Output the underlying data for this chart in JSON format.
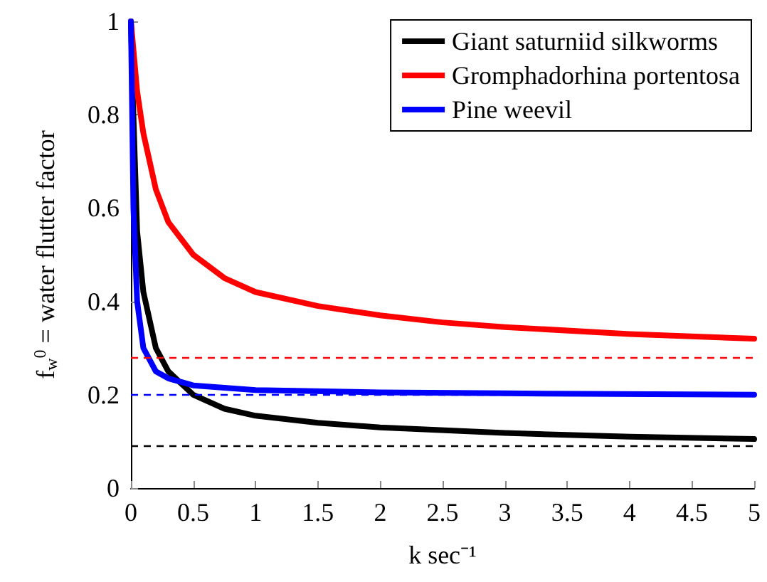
{
  "chart_data": {
    "type": "line",
    "xlabel": "k sec⁻¹",
    "ylabel": "f$_{w}$$^{0}$ = water flutter factor",
    "xlim": [
      0,
      5
    ],
    "ylim": [
      0,
      1
    ],
    "xticks": [
      0,
      0.5,
      1,
      1.5,
      2,
      2.5,
      3,
      3.5,
      4,
      4.5,
      5
    ],
    "yticks": [
      0,
      0.2,
      0.4,
      0.6,
      0.8,
      1
    ],
    "grid": false,
    "legend": "top right",
    "marker": "none",
    "line_style": "solid",
    "series": [
      {
        "name": "Giant saturniid silkworms",
        "color": "#000000",
        "x": [
          0,
          0.02,
          0.05,
          0.1,
          0.2,
          0.3,
          0.5,
          0.75,
          1,
          1.5,
          2,
          3,
          4,
          5
        ],
        "values": [
          1,
          0.8,
          0.55,
          0.42,
          0.3,
          0.25,
          0.2,
          0.17,
          0.155,
          0.14,
          0.13,
          0.118,
          0.11,
          0.105
        ]
      },
      {
        "name": "Gromphadorhina portentosa",
        "color": "#ff0000",
        "x": [
          0,
          0.05,
          0.1,
          0.2,
          0.3,
          0.5,
          0.75,
          1,
          1.5,
          2,
          2.5,
          3,
          4,
          5
        ],
        "values": [
          1,
          0.85,
          0.76,
          0.64,
          0.57,
          0.5,
          0.45,
          0.42,
          0.39,
          0.37,
          0.355,
          0.345,
          0.33,
          0.32
        ]
      },
      {
        "name": "Pine weevil",
        "color": "#0000ff",
        "x": [
          0,
          0.02,
          0.05,
          0.1,
          0.2,
          0.3,
          0.5,
          1,
          2,
          3,
          5
        ],
        "values": [
          1,
          0.6,
          0.4,
          0.3,
          0.25,
          0.235,
          0.22,
          0.21,
          0.205,
          0.203,
          0.2
        ]
      }
    ],
    "ref_lines": [
      {
        "axis": "y",
        "value": 0.28,
        "color": "#ff0000",
        "line_style": "dashed"
      },
      {
        "axis": "y",
        "value": 0.205,
        "color": "#0000ff",
        "line_style": "dashed"
      },
      {
        "axis": "y",
        "value": 0.09,
        "color": "#000000",
        "line_style": "dashed"
      }
    ]
  }
}
